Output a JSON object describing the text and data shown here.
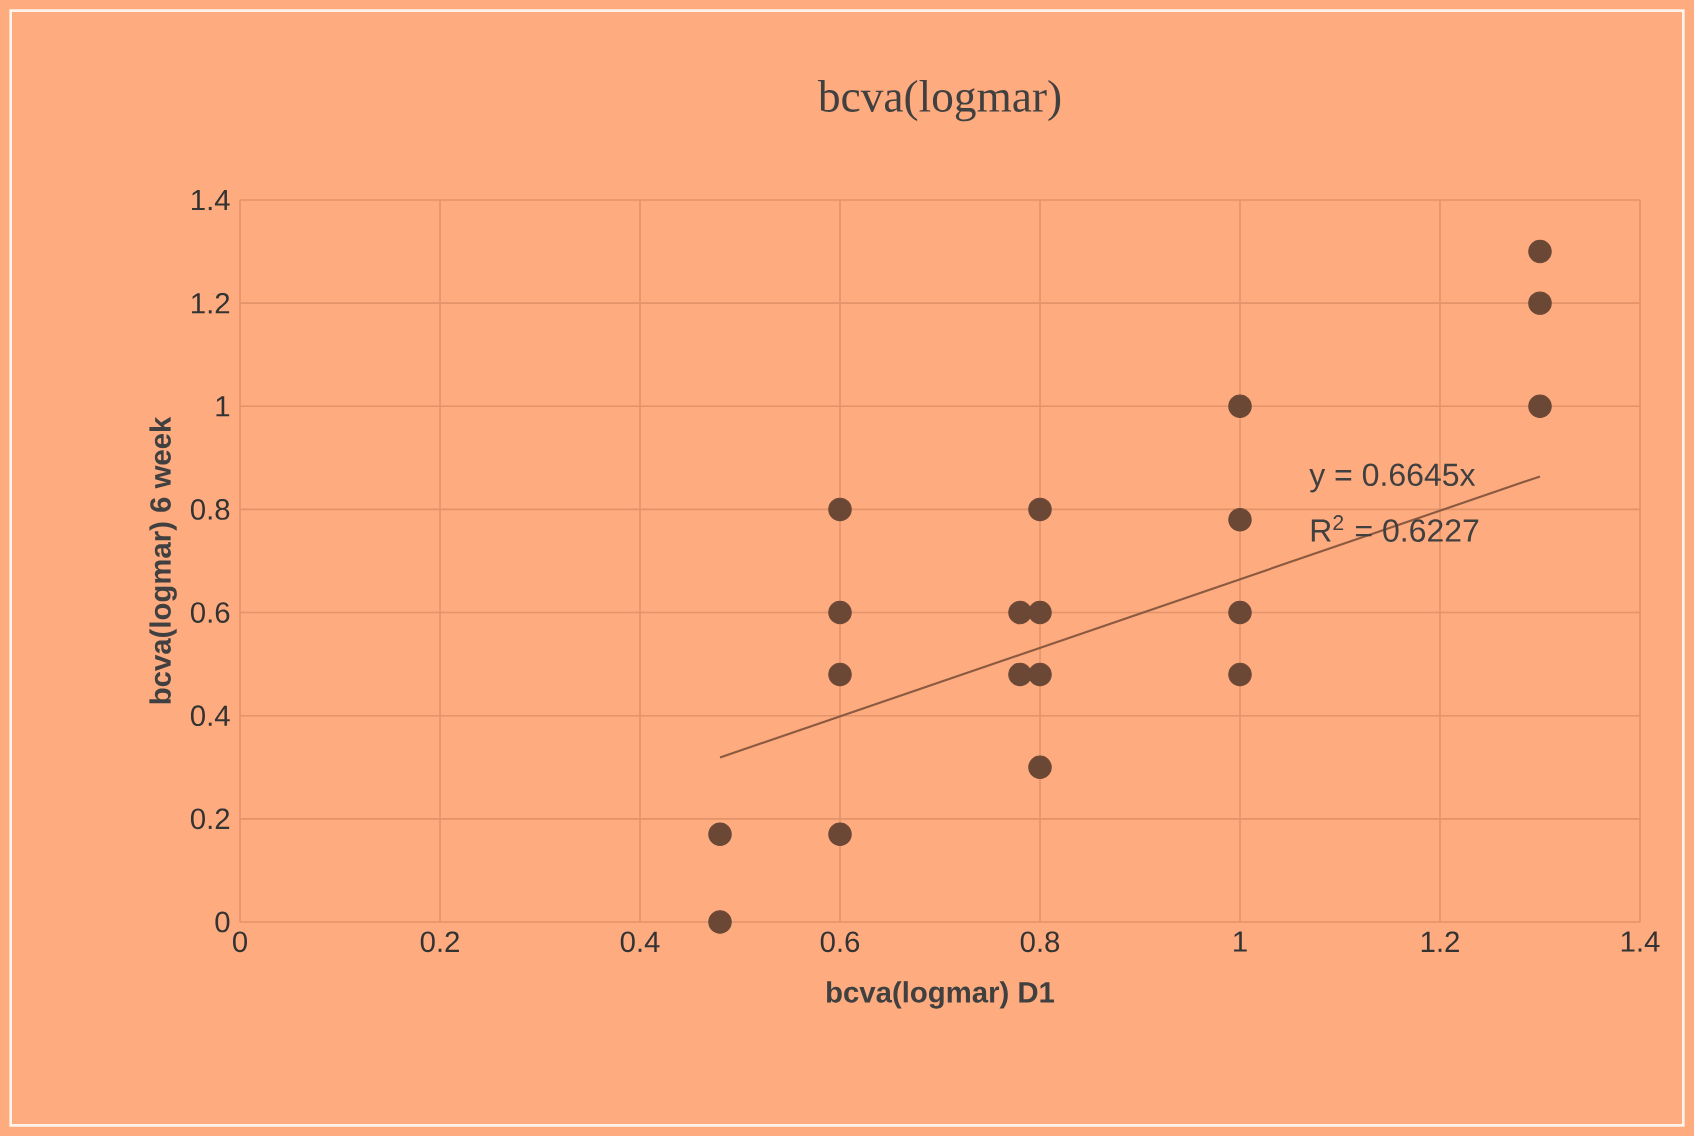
{
  "chart_data": {
    "type": "scatter",
    "title": "bcva(logmar)",
    "xlabel": "bcva(logmar) D1",
    "ylabel": "bcva(logmar) 6 week",
    "series": [
      {
        "color": "#6b4836",
        "marker": "circle",
        "x": [
          0.48,
          0.48,
          0.6,
          0.6,
          0.6,
          0.6,
          0.78,
          0.78,
          0.8,
          0.8,
          0.8,
          0.8,
          1,
          1,
          1,
          1,
          1.3,
          1.3,
          1.3
        ],
        "values": [
          0.17,
          0,
          0.8,
          0.6,
          0.48,
          0.17,
          0.6,
          0.48,
          0.8,
          0.6,
          0.48,
          0.3,
          1,
          0.78,
          0.6,
          0.48,
          1.3,
          1.2,
          1
        ]
      },
      {
        "type": "line",
        "marker": "none",
        "color": "#8b5a40",
        "x": [
          0.48,
          1.3
        ],
        "values": [
          0.319,
          0.864
        ]
      }
    ],
    "annotations": [
      "y = 0.6645x",
      "R$^{2}$ = 0.6227"
    ],
    "xlim": [
      0,
      1.4
    ],
    "ylim": [
      0,
      1.4
    ],
    "xticks": [
      0,
      0.2,
      0.4,
      0.6,
      0.8,
      1,
      1.2,
      1.4
    ],
    "yticks": [
      0,
      0.2,
      0.4,
      0.6,
      0.8,
      1,
      1.2,
      1.4
    ],
    "grid": true
  }
}
